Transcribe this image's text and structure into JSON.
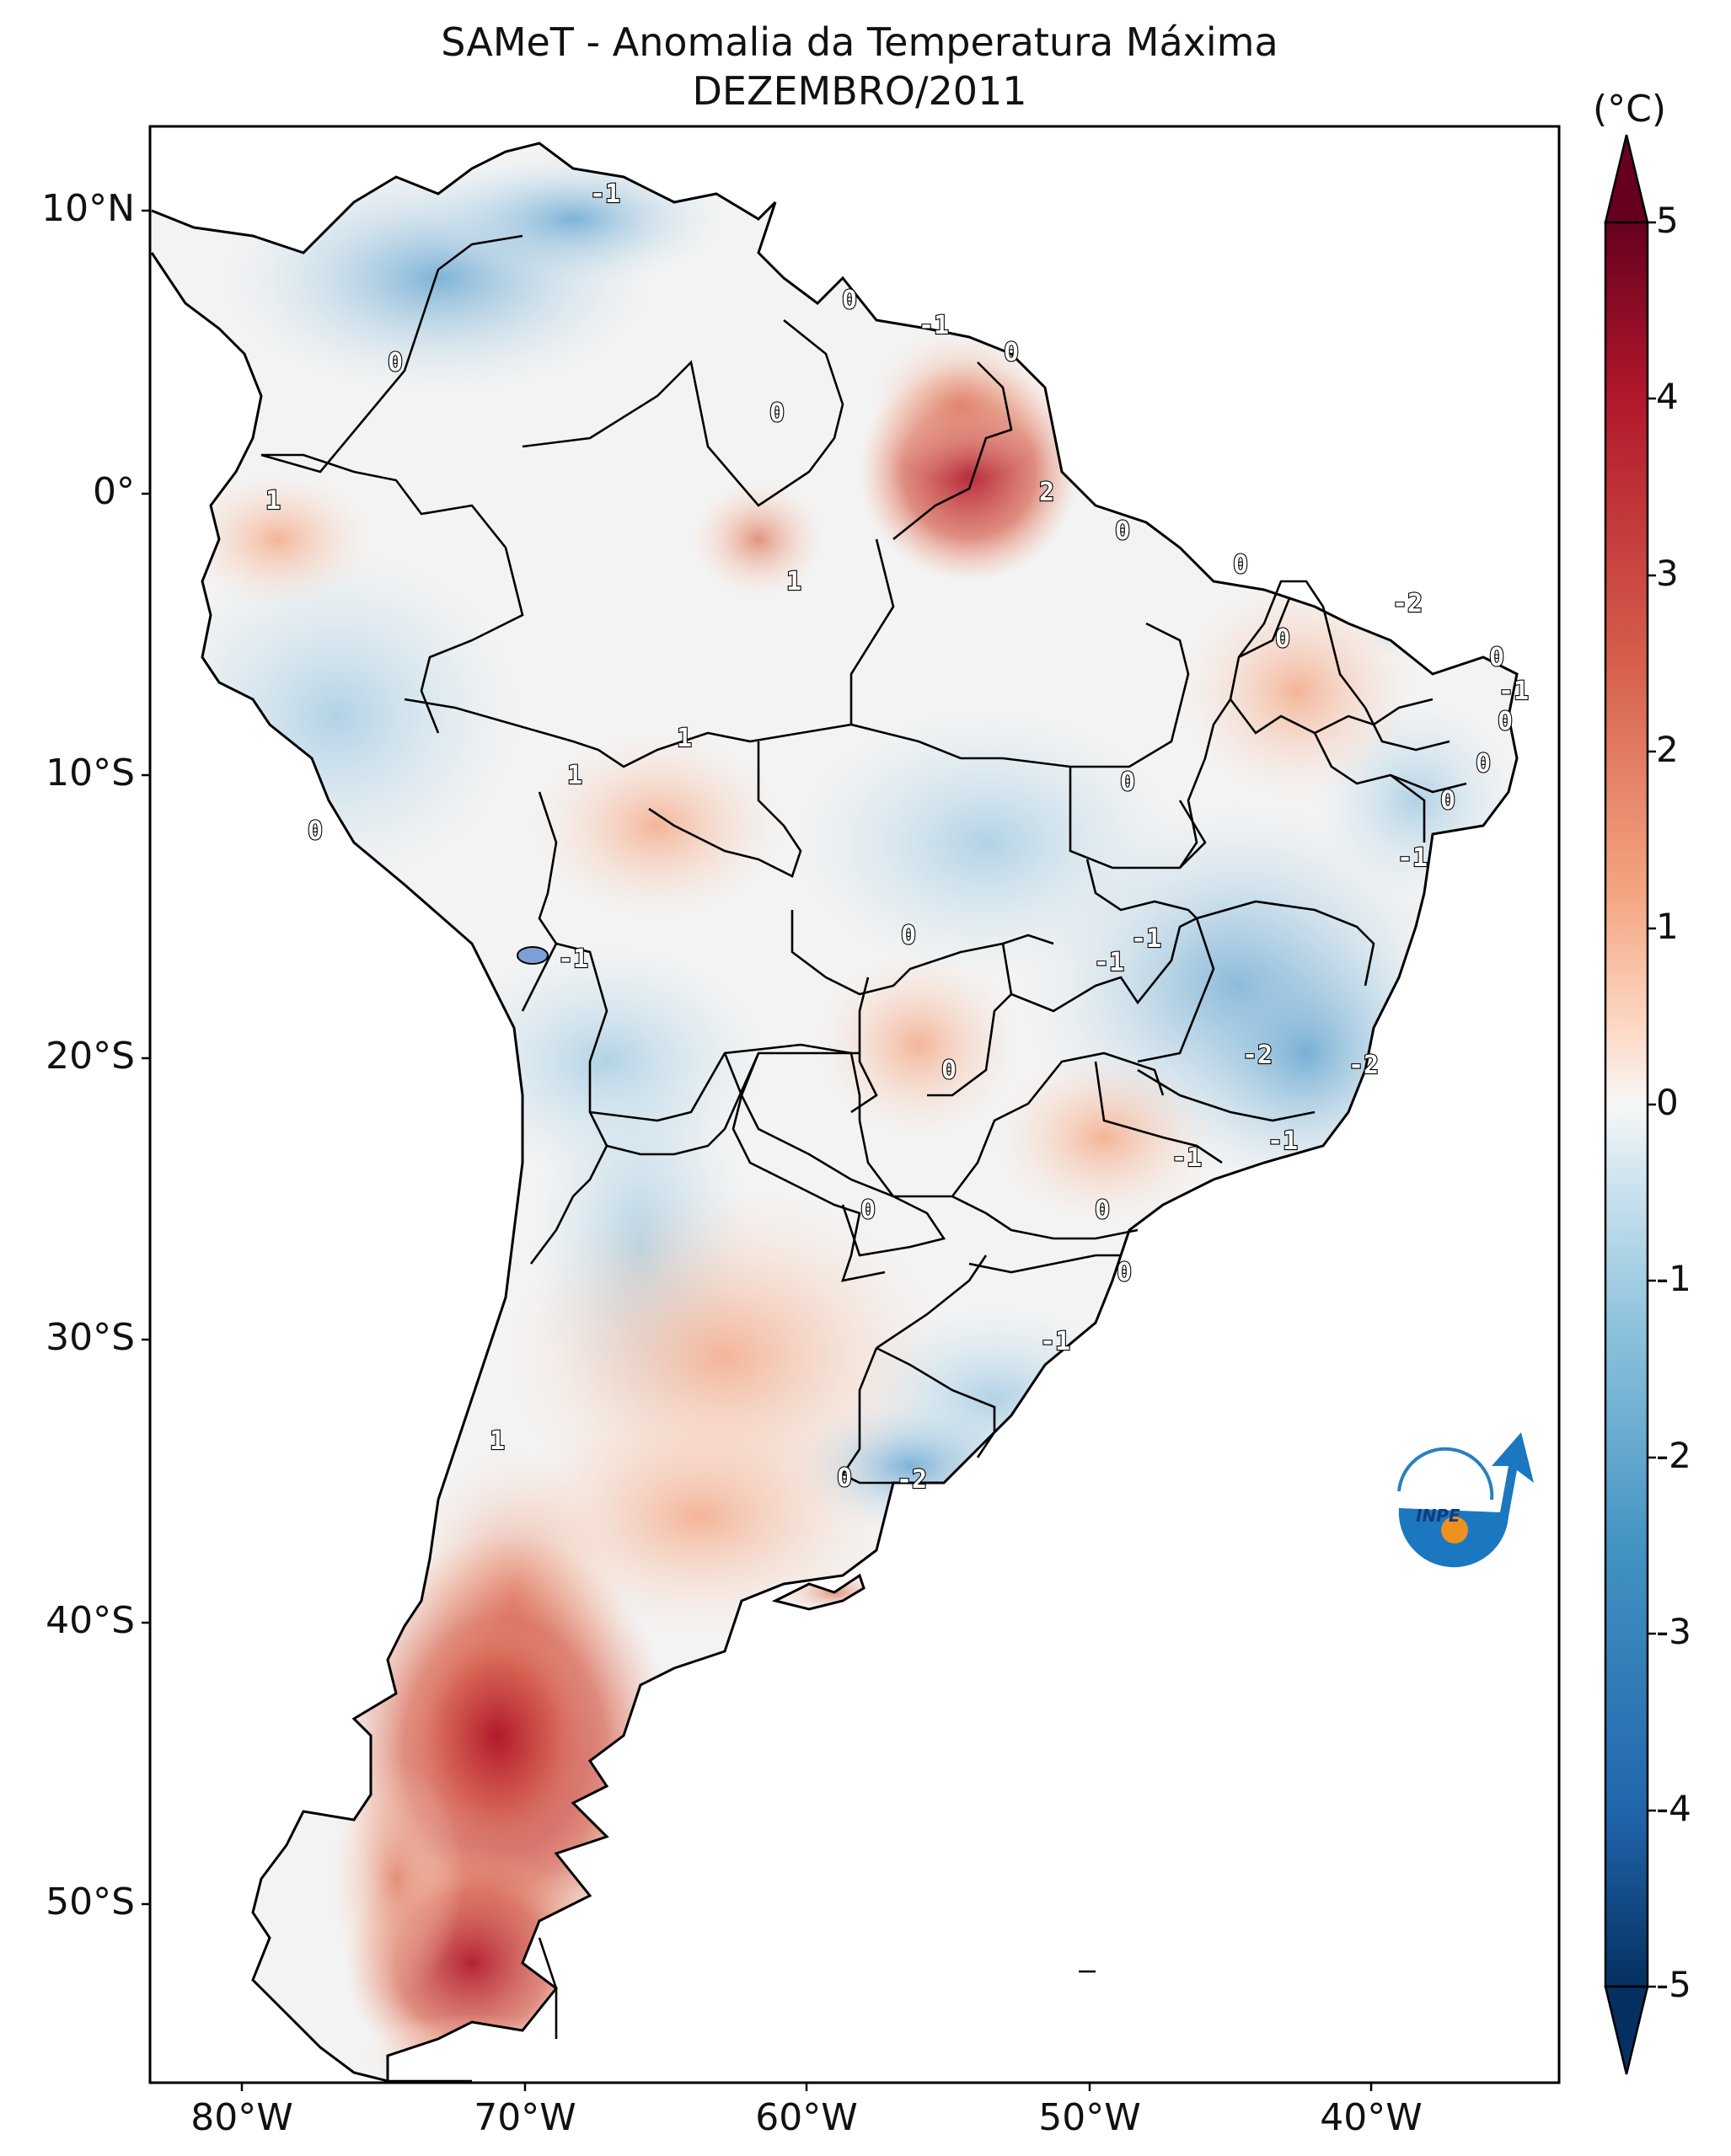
{
  "title": "SAMeT - Anomalia da Temperatura Máxima",
  "subtitle": "DEZEMBRO/2011",
  "colorbar": {
    "unit": "(°C)",
    "ticks": [
      "5",
      "4",
      "3",
      "2",
      "1",
      "0",
      "-1",
      "-2",
      "-3",
      "-4",
      "-5"
    ],
    "range": [
      -5,
      5
    ],
    "colors": {
      "max": "#67001f",
      "high": "#d6604d",
      "mid": "#f7f7f7",
      "low": "#4393c3",
      "min": "#053061"
    }
  },
  "axes": {
    "lat_labels": [
      "10°N",
      "0°",
      "10°S",
      "20°S",
      "30°S",
      "40°S",
      "50°S"
    ],
    "lon_labels": [
      "80°W",
      "70°W",
      "60°W",
      "50°W",
      "40°W"
    ]
  },
  "contour_labels": [
    "-1",
    "0",
    "0",
    "-1",
    "0",
    "0",
    "1",
    "0",
    "1",
    "2",
    "0",
    "0",
    "-2",
    "0",
    "0",
    "-1",
    "0",
    "1",
    "1",
    "0",
    "0",
    "0",
    "-1",
    "0",
    "-1",
    "-1",
    "-1",
    "-2",
    "0",
    "-2",
    "-1",
    "-1",
    "0",
    "0",
    "-1",
    "0",
    "1",
    "0",
    "-2"
  ],
  "logo": "INPE"
}
